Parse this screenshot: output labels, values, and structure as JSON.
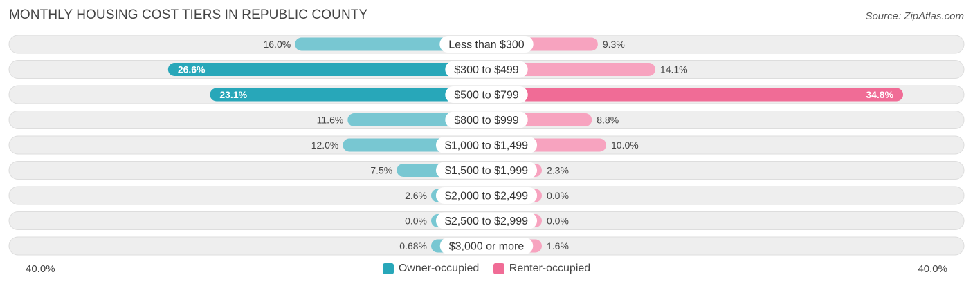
{
  "title": "MONTHLY HOUSING COST TIERS IN REPUBLIC COUNTY",
  "source": "Source: ZipAtlas.com",
  "colors": {
    "owner_dark": "#28a7b9",
    "owner_light": "#78c7d2",
    "renter_dark": "#f06c96",
    "renter_light": "#f7a3bf",
    "row_bg": "#eeeeee"
  },
  "chart_data": {
    "type": "bar",
    "orientation": "diverging-horizontal",
    "title": "MONTHLY HOUSING COST TIERS IN REPUBLIC COUNTY",
    "categories": [
      "Less than $300",
      "$300 to $499",
      "$500 to $799",
      "$800 to $999",
      "$1,000 to $1,499",
      "$1,500 to $1,999",
      "$2,000 to $2,499",
      "$2,500 to $2,999",
      "$3,000 or more"
    ],
    "series": [
      {
        "name": "Owner-occupied",
        "values": [
          16.0,
          26.6,
          23.1,
          11.6,
          12.0,
          7.5,
          2.6,
          0.0,
          0.68
        ],
        "labels": [
          "16.0%",
          "26.6%",
          "23.1%",
          "11.6%",
          "12.0%",
          "7.5%",
          "2.6%",
          "0.0%",
          "0.68%"
        ]
      },
      {
        "name": "Renter-occupied",
        "values": [
          9.3,
          14.1,
          34.8,
          8.8,
          10.0,
          2.3,
          0.0,
          0.0,
          1.6
        ],
        "labels": [
          "9.3%",
          "14.1%",
          "34.8%",
          "8.8%",
          "10.0%",
          "2.3%",
          "0.0%",
          "0.0%",
          "1.6%"
        ]
      }
    ],
    "xlim": [
      -40,
      40
    ],
    "axis_left_label": "40.0%",
    "axis_right_label": "40.0%",
    "legend_position": "bottom-center"
  }
}
